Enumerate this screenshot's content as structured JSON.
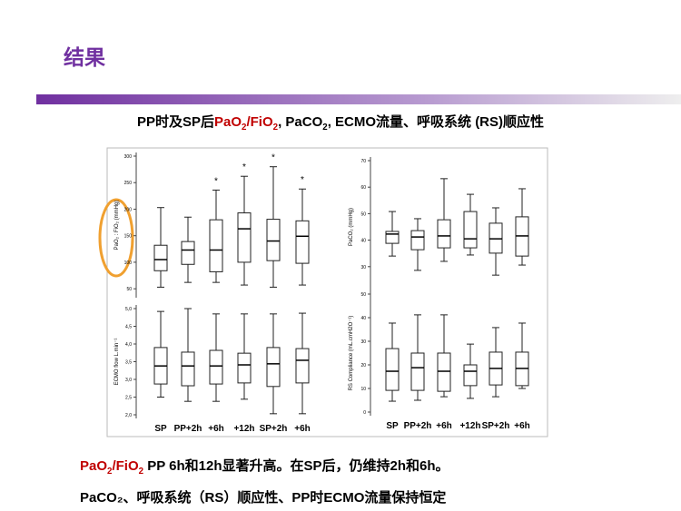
{
  "header": {
    "title": "结果",
    "subtitle": [
      "PP时及SP后",
      "PaO",
      "2",
      "/FiO",
      "2",
      ", PaCO",
      "2",
      ", ECMO流量、呼吸系统 (RS)顺应性"
    ]
  },
  "footer": {
    "line1": [
      "PaO",
      "2",
      "/FiO",
      "2",
      " PP 6h和12h显著升高。在SP后，仍维持2h和6h。"
    ],
    "line2": "PaCO₂、呼吸系统（RS）顺应性、PP时ECMO流量保持恒定"
  },
  "chart_data": [
    {
      "type": "box",
      "y_label": "PaO₂ : FiO₂ (mmHg)",
      "ylim": [
        40,
        300
      ],
      "yticks": [
        50,
        100,
        150,
        200,
        250,
        300
      ],
      "stats": [
        {
          "min": 53,
          "q1": 84,
          "median": 105,
          "q3": 132,
          "max": 203
        },
        {
          "min": 62,
          "q1": 96,
          "median": 123,
          "q3": 139,
          "max": 185
        },
        {
          "min": 62,
          "q1": 82,
          "median": 123,
          "q3": 180,
          "max": 236
        },
        {
          "min": 57,
          "q1": 100,
          "median": 163,
          "q3": 193,
          "max": 262
        },
        {
          "min": 53,
          "q1": 103,
          "median": 140,
          "q3": 181,
          "max": 280
        },
        {
          "min": 57,
          "q1": 98,
          "median": 149,
          "q3": 178,
          "max": 238
        }
      ],
      "markers": [
        null,
        null,
        "*",
        "*",
        "*",
        "*"
      ]
    },
    {
      "type": "box",
      "y_label": "ECMO flow L.min⁻¹",
      "ylim": [
        2,
        5
      ],
      "yticks": [
        {
          "value": 2,
          "label": "2,0"
        },
        {
          "value": 2.5,
          "label": "2,5"
        },
        {
          "value": 3,
          "label": "3,0"
        },
        {
          "value": 3.5,
          "label": "3,5"
        },
        {
          "value": 4,
          "label": "4,0"
        },
        {
          "value": 4.5,
          "label": "4,5"
        },
        {
          "value": 5,
          "label": "5,0"
        }
      ],
      "categories": [
        "SP",
        "PP+2h",
        "+6h",
        "+12h",
        "SP+2h",
        "+6h"
      ],
      "stats": [
        {
          "min": 2.5,
          "q1": 2.87,
          "median": 3.38,
          "q3": 3.9,
          "max": 4.92
        },
        {
          "min": 2.38,
          "q1": 2.82,
          "median": 3.38,
          "q3": 3.77,
          "max": 5
        },
        {
          "min": 2.38,
          "q1": 2.87,
          "median": 3.38,
          "q3": 3.82,
          "max": 4.85
        },
        {
          "min": 2.44,
          "q1": 2.9,
          "median": 3.41,
          "q3": 3.74,
          "max": 4.85
        },
        {
          "min": 2.03,
          "q1": 2.8,
          "median": 3.44,
          "q3": 3.9,
          "max": 4.85
        },
        {
          "min": 2.03,
          "q1": 2.9,
          "median": 3.54,
          "q3": 3.87,
          "max": 4.87
        }
      ]
    },
    {
      "type": "box",
      "y_label": "PaCO₂ (mmHg)",
      "ylim": [
        20,
        70
      ],
      "yticks": [
        30,
        40,
        50,
        60,
        70
      ],
      "stats": [
        {
          "min": 34,
          "q1": 38.8,
          "median": 42.3,
          "q3": 43.3,
          "max": 50.8
        },
        {
          "min": 28.6,
          "q1": 36.4,
          "median": 41.2,
          "q3": 43.6,
          "max": 48.1
        },
        {
          "min": 32,
          "q1": 37.1,
          "median": 41.6,
          "q3": 47.7,
          "max": 63.2
        },
        {
          "min": 34.4,
          "q1": 37.1,
          "median": 40.5,
          "q3": 50.8,
          "max": 57.3
        },
        {
          "min": 26.8,
          "q1": 35.1,
          "median": 40.5,
          "q3": 46.4,
          "max": 52.2
        },
        {
          "min": 30.6,
          "q1": 34,
          "median": 41.6,
          "q3": 48.8,
          "max": 59.4
        }
      ]
    },
    {
      "type": "box",
      "y_label": "RS Compliance (mL.cmH2O⁻¹)",
      "ylim": [
        0,
        50
      ],
      "yticks": [
        0,
        10,
        20,
        30,
        40,
        50
      ],
      "categories": [
        "SP",
        "PP+2h",
        "+6h",
        "+12h",
        "SP+2h",
        "+6h"
      ],
      "stats": [
        {
          "min": 4.6,
          "q1": 9.2,
          "median": 17.3,
          "q3": 26.9,
          "max": 37.7
        },
        {
          "min": 5,
          "q1": 9.2,
          "median": 18.8,
          "q3": 25,
          "max": 41.2
        },
        {
          "min": 6.5,
          "q1": 8.8,
          "median": 17.3,
          "q3": 25,
          "max": 41.2
        },
        {
          "min": 5.8,
          "q1": 11.2,
          "median": 17.3,
          "q3": 20,
          "max": 28.8
        },
        {
          "min": 6.5,
          "q1": 11.5,
          "median": 18.5,
          "q3": 25.4,
          "max": 35.8
        },
        {
          "min": 10,
          "q1": 11.2,
          "median": 18.5,
          "q3": 25.4,
          "max": 37.7
        }
      ]
    }
  ]
}
